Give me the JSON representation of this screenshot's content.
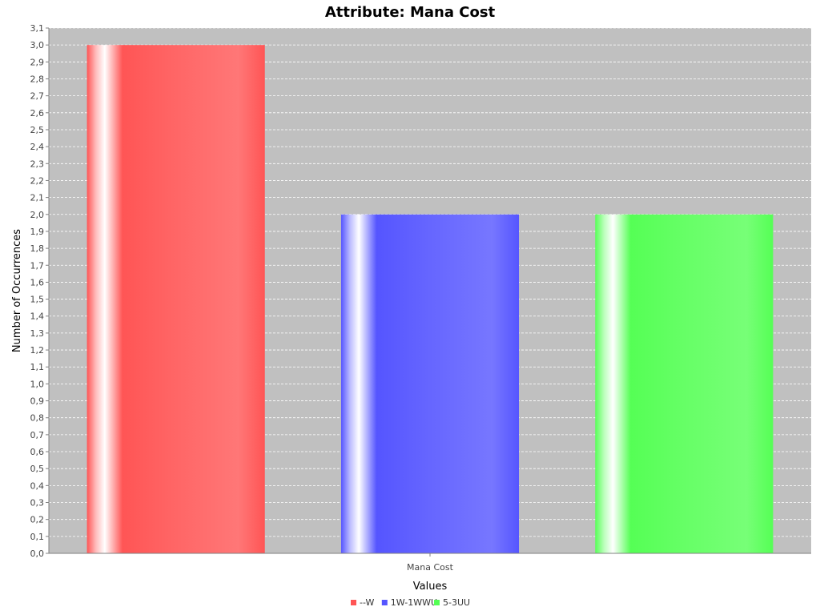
{
  "chart_data": {
    "type": "bar",
    "title": "Attribute: Mana Cost",
    "xlabel": "Values",
    "ylabel": "Number of Occurrences",
    "categories": [
      "Mana Cost"
    ],
    "series": [
      {
        "name": "--W",
        "values": [
          3.0
        ],
        "color": "#ff5555"
      },
      {
        "name": "1W-1WWU",
        "values": [
          2.0
        ],
        "color": "#5555ff"
      },
      {
        "name": "5-3UU",
        "values": [
          2.0
        ],
        "color": "#55ff55"
      }
    ],
    "ylim": [
      0,
      3.1
    ],
    "yticks": [
      "0,0",
      "0,1",
      "0,2",
      "0,3",
      "0,4",
      "0,5",
      "0,6",
      "0,7",
      "0,8",
      "0,9",
      "1,0",
      "1,1",
      "1,2",
      "1,3",
      "1,4",
      "1,5",
      "1,6",
      "1,7",
      "1,8",
      "1,9",
      "2,0",
      "2,1",
      "2,2",
      "2,3",
      "2,4",
      "2,5",
      "2,6",
      "2,7",
      "2,8",
      "2,9",
      "3,0",
      "3,1"
    ],
    "grid": true,
    "legend_position": "bottom",
    "plot_background": "#c0c0c0"
  }
}
